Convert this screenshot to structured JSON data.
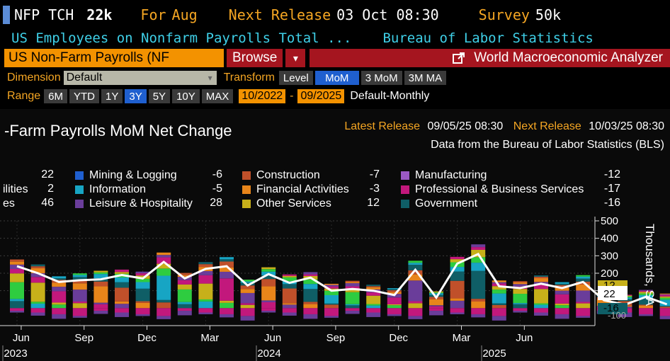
{
  "header": {
    "ticker": "NFP TCH",
    "value": "22k",
    "for_label": "For",
    "period": "Aug",
    "next_label": "Next Release",
    "next_date": "03 Oct 08:30",
    "survey_label": "Survey",
    "survey": "50k",
    "description": "US Employees on Nonfarm Payrolls Total ...",
    "source": "Bureau of Labor Statistics"
  },
  "toolbar": {
    "security": "US Non-Farm Payrolls (NF",
    "browse": "Browse",
    "dropdown": "▾",
    "app": "World Macroeconomic Analyzer"
  },
  "controls": {
    "dimension_label": "Dimension",
    "dimension_value": "Default",
    "transform_label": "Transform",
    "transform_options": [
      "Level",
      "MoM",
      "3 MoM",
      "3M MA"
    ],
    "transform_selected": 1,
    "range_label": "Range",
    "range_options": [
      "6M",
      "YTD",
      "1Y",
      "3Y",
      "5Y",
      "10Y",
      "MAX"
    ],
    "range_selected": 3,
    "date_from": "10/2022",
    "date_sep": "-",
    "date_to": "09/2025",
    "frequency": "Default-Monthly"
  },
  "panel": {
    "title": "-Farm Payrolls MoM Net Change",
    "latest_label": "Latest Release",
    "latest_value": "09/05/25 08:30",
    "next_label": "Next Release",
    "next_value": "10/03/25 08:30",
    "source_note": "Data from the Bureau of Labor Statistics (BLS)"
  },
  "legend": {
    "left_partial": [
      {
        "label": "",
        "value": "22"
      },
      {
        "label": "ilities",
        "value": "2"
      },
      {
        "label": "es",
        "value": "46"
      }
    ],
    "items": [
      {
        "label": "Mining & Logging",
        "value": "-6",
        "color": "#1f5fcf"
      },
      {
        "label": "Information",
        "value": "-5",
        "color": "#17a5c4"
      },
      {
        "label": "Leisure & Hospitality",
        "value": "28",
        "color": "#6a3d9a"
      },
      {
        "label": "Construction",
        "value": "-7",
        "color": "#c0502a"
      },
      {
        "label": "Financial Activities",
        "value": "-3",
        "color": "#e8851a"
      },
      {
        "label": "Other Services",
        "value": "12",
        "color": "#c7b01a"
      },
      {
        "label": "Manufacturing",
        "value": "-12",
        "color": "#9b59c4"
      },
      {
        "label": "Professional & Business Services",
        "value": "-17",
        "color": "#c2187c"
      },
      {
        "label": "Government",
        "value": "-16",
        "color": "#0f5e66"
      }
    ]
  },
  "chart_data": {
    "type": "bar",
    "stacked": true,
    "ylabel": "Thousands, SA",
    "ylim": [
      -100,
      500
    ],
    "yticks": [
      500,
      400,
      300,
      200,
      100
    ],
    "x_month_labels": [
      "Jun",
      "Sep",
      "Dec",
      "Mar",
      "Jun",
      "Sep",
      "Dec",
      "Mar",
      "Jun"
    ],
    "x_year_labels": [
      "2023",
      "2024",
      "2025"
    ],
    "bar_colors": [
      "#0f5e66",
      "#17a5c4",
      "#2ecc40",
      "#c7b01a",
      "#c2187c",
      "#6a3d9a",
      "#e8851a",
      "#c0502a"
    ],
    "total_series": [
      240,
      200,
      150,
      160,
      165,
      190,
      170,
      265,
      170,
      225,
      240,
      130,
      195,
      145,
      175,
      100,
      110,
      100,
      75,
      220,
      60,
      255,
      310,
      125,
      115,
      140,
      115,
      150,
      45,
      20,
      65,
      22
    ],
    "badges": [
      {
        "value": "12",
        "color": "#c7b01a"
      },
      {
        "value": "22",
        "color": "#ffffff"
      },
      {
        "value": "-16",
        "color": "#0f5e66"
      }
    ],
    "badge_extra": "-100"
  }
}
